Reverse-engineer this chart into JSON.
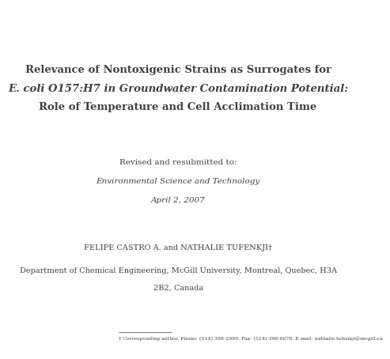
{
  "bg_color": "#ffffff",
  "title_line1": "Relevance of Nontoxigenic Strains as Surrogates for",
  "title_line2_italic": "E. coli",
  "title_line2_normal": " O157:H7 in Groundwater Contamination Potential:",
  "title_line3": "Role of Temperature and Cell Acclimation Time",
  "revised_line": "Revised and resubmitted to:",
  "journal_line": "Environmental Science and Technology",
  "date_line": "April 2, 2007",
  "authors_line": "FELIPE CASTRO A. and NATHALIE TUFENKJI†",
  "affil_line1": "Department of Chemical Engineering, McGill University, Montreal, Quebec, H3A",
  "affil_line2": "2B2, Canada",
  "footnote_line": "† Corresponding author. Phone: (514) 398-2999. Fax: (514) 398-6678. E-mail: nathalie.tufenkji@mcgill.ca",
  "title_fontsize": 9.5,
  "revised_fontsize": 7.5,
  "journal_fontsize": 7.5,
  "date_fontsize": 7.5,
  "authors_fontsize": 7.0,
  "affil_fontsize": 7.0,
  "footnote_fontsize": 4.5,
  "text_color": "#404040"
}
